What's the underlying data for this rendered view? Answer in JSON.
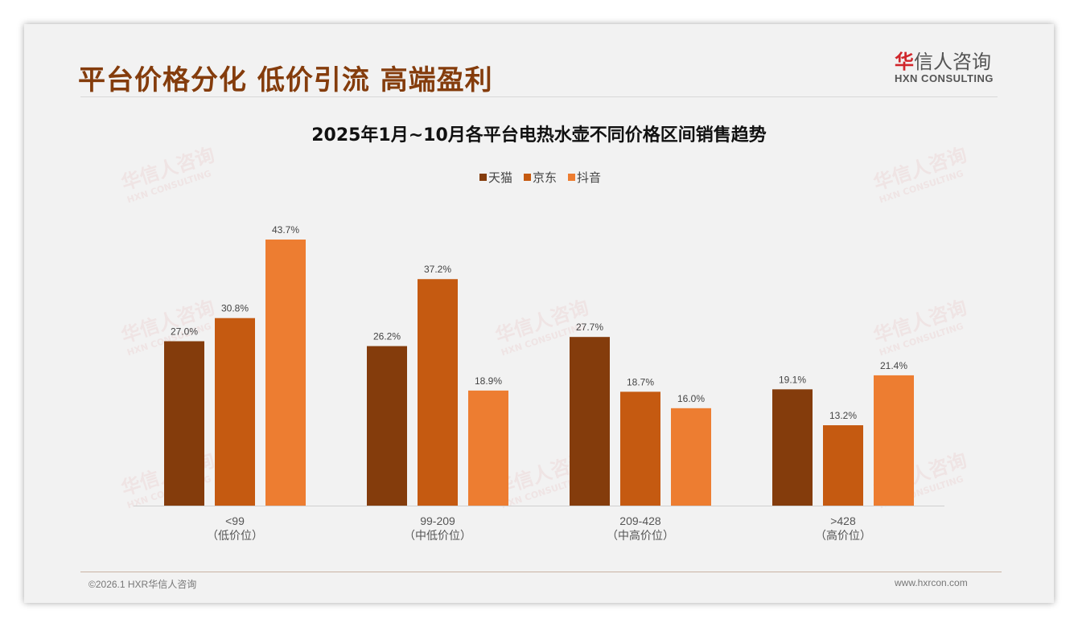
{
  "header": {
    "title": "平台价格分化 低价引流 高端盈利",
    "logo_cn_mark": "华",
    "logo_cn": "信人咨询",
    "logo_en": "HXN CONSULTING"
  },
  "footer": {
    "copyright": "©2026.1 HXR华信人咨询",
    "website": "www.hxrcon.com"
  },
  "watermark": {
    "cn": "华信人咨询",
    "en": "HXN CONSULTING"
  },
  "colors": {
    "tmall": "#843C0C",
    "jd": "#C55A11",
    "douyin": "#ED7D31"
  },
  "chart_data": {
    "type": "bar",
    "title": "2025年1月~10月各平台电热水壶不同价格区间销售趋势",
    "categories": [
      "<99",
      "99-209",
      "209-428",
      ">428"
    ],
    "category_sublabels": [
      "（低价位）",
      "（中低价位）",
      "（中高价位）",
      "（高价位）"
    ],
    "series": [
      {
        "name": "天猫",
        "values": [
          27.0,
          26.2,
          27.7,
          19.1
        ]
      },
      {
        "name": "京东",
        "values": [
          30.8,
          37.2,
          18.7,
          13.2
        ]
      },
      {
        "name": "抖音",
        "values": [
          43.7,
          18.9,
          16.0,
          21.4
        ]
      }
    ],
    "value_format": "percent",
    "legend": "top-center",
    "ylim": [
      0,
      45
    ],
    "grid": false
  }
}
